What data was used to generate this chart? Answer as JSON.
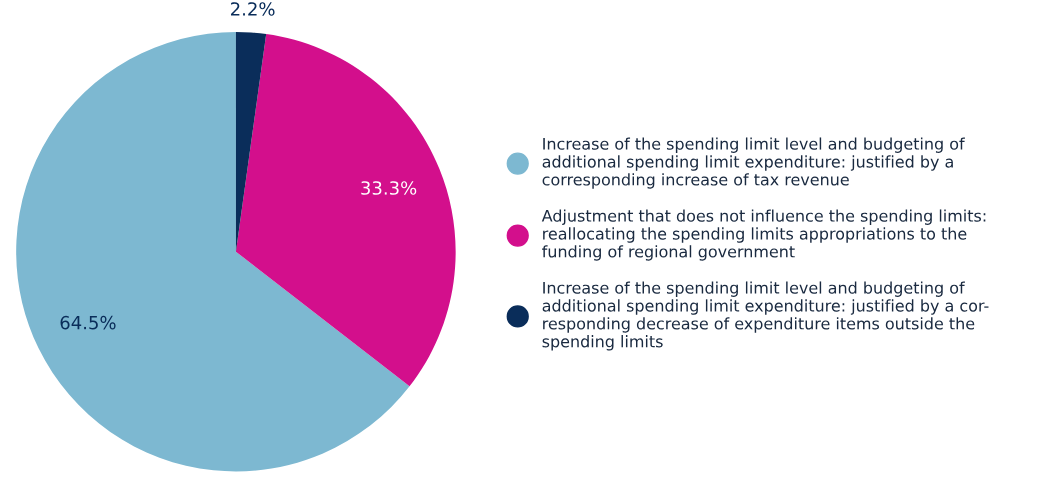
{
  "chart_data": {
    "type": "pie",
    "categories": [
      "Increase of the spending limit level and budgeting of\nadditional spending limit expenditure: justified by a\ncorresponding increase of tax revenue",
      "Adjustment that does not influence the spending limits:\nreallocating the spending limits appropriations to the\nfunding of regional government",
      "Increase of the spending limit level and budgeting of\nadditional spending limit expenditure: justified by a cor-\nresponding decrease of expenditure items outside the\nspending limits"
    ],
    "values": [
      64.5,
      33.3,
      2.2
    ],
    "value_labels": [
      "64.5%",
      "33.3%",
      "2.2%"
    ],
    "colors": [
      "#7db8d1",
      "#d30f8c",
      "#0a2d5a"
    ],
    "legend": "right"
  }
}
